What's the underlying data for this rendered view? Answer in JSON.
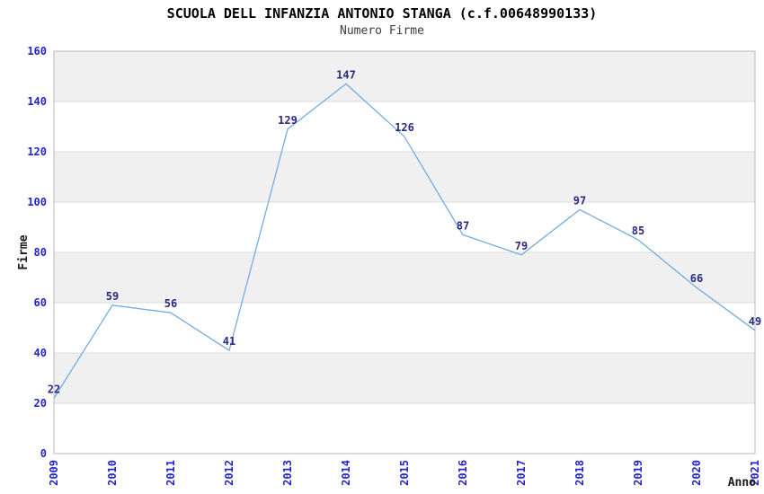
{
  "title": "SCUOLA DELL INFANZIA ANTONIO STANGA (c.f.00648990133)",
  "subtitle": "Numero Firme",
  "chart_data": {
    "type": "line",
    "x": [
      "2009",
      "2010",
      "2011",
      "2012",
      "2013",
      "2014",
      "2015",
      "2016",
      "2017",
      "2018",
      "2019",
      "2020",
      "2021"
    ],
    "series": [
      {
        "name": "Numero Firme",
        "values": [
          22,
          59,
          56,
          41,
          129,
          147,
          126,
          87,
          79,
          97,
          85,
          66,
          49
        ]
      }
    ],
    "title": "SCUOLA DELL INFANZIA ANTONIO STANGA (c.f.00648990133)",
    "subtitle": "Numero Firme",
    "xlabel": "Anno",
    "ylabel": "Firme",
    "ylim": [
      0,
      160
    ],
    "yticks": [
      0,
      20,
      40,
      60,
      80,
      100,
      120,
      140,
      160
    ],
    "grid": "alternating-horizontal-bands",
    "legend": "none",
    "data_labels_visible": true,
    "colors": {
      "line": "#76abe3",
      "tick_labels": "#2424cc",
      "data_labels": "#2a2a80",
      "band_gray": "#f0f0f0",
      "band_white": "#ffffff",
      "gridline": "#dcdcdc",
      "plot_border": "#b8b8b8",
      "title": "#000000",
      "subtitle": "#3c3c3c",
      "axis_title": "#1a1a1a"
    }
  }
}
